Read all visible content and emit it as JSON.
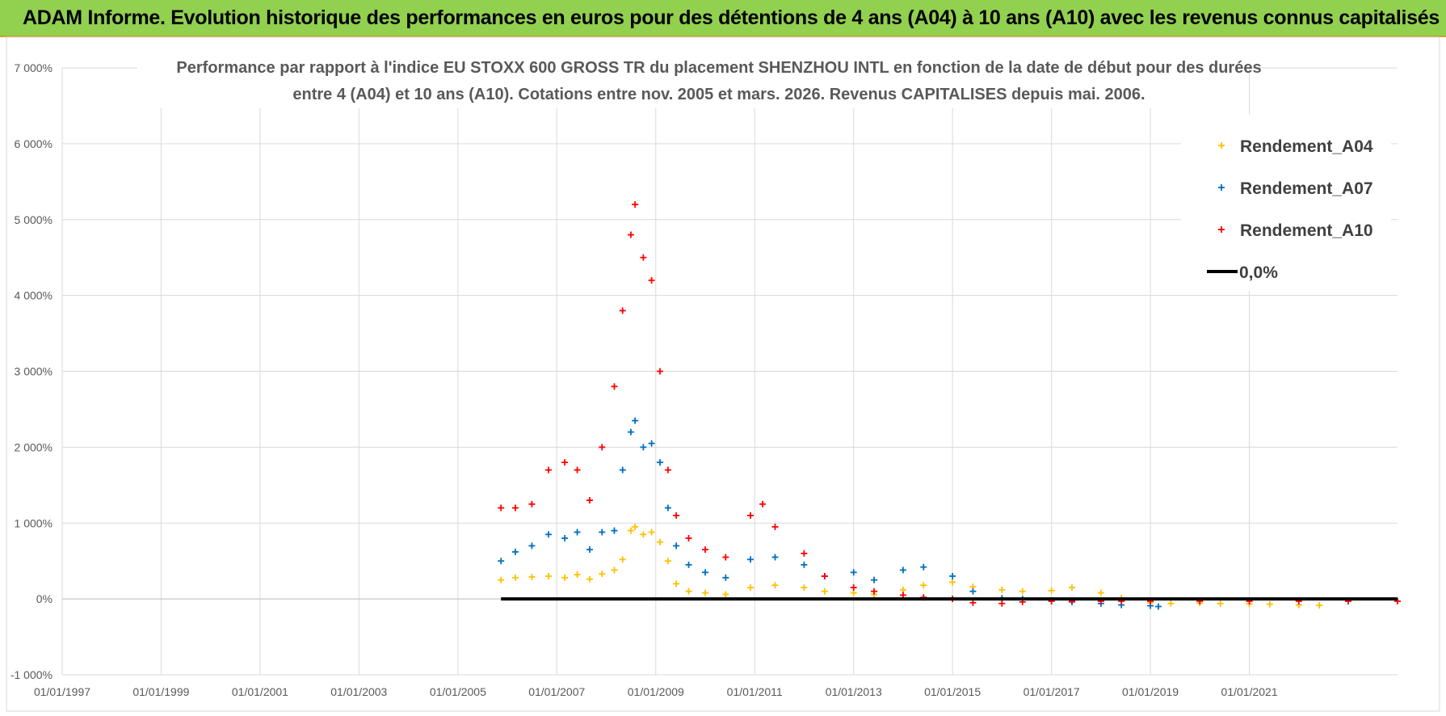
{
  "banner": {
    "title": "ADAM Informe. Evolution historique des performances en euros pour des détentions de 4 ans (A04) à 10 ans (A10) avec les revenus connus capitalisés"
  },
  "chart_data": {
    "type": "scatter",
    "title_line1": "Performance par rapport à l'indice EU STOXX 600 GROSS TR  du placement SHENZHOU INTL en fonction de la date de début pour des durées",
    "title_line2": "entre 4 (A04) et 10 ans (A10). Cotations entre nov. 2005 et mars. 2026. Revenus CAPITALISES depuis mai. 2006.",
    "xlabel": "",
    "ylabel": "",
    "x_range": [
      "1997-01-01",
      "2023-12-31"
    ],
    "x_tick_labels": [
      "01/01/1997",
      "01/01/1999",
      "01/01/2001",
      "01/01/2003",
      "01/01/2005",
      "01/01/2007",
      "01/01/2009",
      "01/01/2011",
      "01/01/2013",
      "01/01/2015",
      "01/01/2017",
      "01/01/2019",
      "01/01/2021"
    ],
    "y_range": [
      -1000,
      7000
    ],
    "y_ticks": [
      -1000,
      0,
      1000,
      2000,
      3000,
      4000,
      5000,
      6000,
      7000
    ],
    "y_tick_labels": [
      "-1 000%",
      "0%",
      "1 000%",
      "2 000%",
      "3 000%",
      "4 000%",
      "5 000%",
      "6 000%",
      "7 000%"
    ],
    "grid": true,
    "legend_position": "top-right",
    "series": [
      {
        "name": "Rendement_A04",
        "color": "#ffc000",
        "marker": "plus",
        "points": [
          [
            "2005-11-15",
            250
          ],
          [
            "2006-03-01",
            280
          ],
          [
            "2006-07-01",
            290
          ],
          [
            "2006-11-01",
            300
          ],
          [
            "2007-03-01",
            280
          ],
          [
            "2007-06-01",
            320
          ],
          [
            "2007-09-01",
            260
          ],
          [
            "2007-12-01",
            330
          ],
          [
            "2008-03-01",
            380
          ],
          [
            "2008-05-01",
            520
          ],
          [
            "2008-07-01",
            900
          ],
          [
            "2008-08-01",
            950
          ],
          [
            "2008-10-01",
            850
          ],
          [
            "2008-12-01",
            880
          ],
          [
            "2009-02-01",
            750
          ],
          [
            "2009-04-01",
            500
          ],
          [
            "2009-06-01",
            200
          ],
          [
            "2009-09-01",
            100
          ],
          [
            "2010-01-01",
            80
          ],
          [
            "2010-06-01",
            60
          ],
          [
            "2010-12-01",
            150
          ],
          [
            "2011-06-01",
            180
          ],
          [
            "2012-01-01",
            150
          ],
          [
            "2012-06-01",
            100
          ],
          [
            "2013-01-01",
            80
          ],
          [
            "2013-06-01",
            60
          ],
          [
            "2014-01-01",
            120
          ],
          [
            "2014-06-01",
            180
          ],
          [
            "2015-01-01",
            220
          ],
          [
            "2015-06-01",
            160
          ],
          [
            "2016-01-01",
            120
          ],
          [
            "2016-06-01",
            100
          ],
          [
            "2017-01-01",
            110
          ],
          [
            "2017-06-01",
            150
          ],
          [
            "2018-01-01",
            80
          ],
          [
            "2018-06-01",
            10
          ],
          [
            "2019-01-01",
            -50
          ],
          [
            "2019-06-01",
            -60
          ],
          [
            "2020-01-01",
            -55
          ],
          [
            "2020-06-01",
            -60
          ],
          [
            "2021-01-01",
            -65
          ],
          [
            "2021-06-01",
            -70
          ],
          [
            "2022-01-01",
            -80
          ],
          [
            "2022-06-01",
            -85
          ]
        ]
      },
      {
        "name": "Rendement_A07",
        "color": "#0070c0",
        "marker": "plus",
        "points": [
          [
            "2005-11-15",
            500
          ],
          [
            "2006-03-01",
            620
          ],
          [
            "2006-07-01",
            700
          ],
          [
            "2006-11-01",
            850
          ],
          [
            "2007-03-01",
            800
          ],
          [
            "2007-06-01",
            880
          ],
          [
            "2007-09-01",
            650
          ],
          [
            "2007-12-01",
            880
          ],
          [
            "2008-03-01",
            900
          ],
          [
            "2008-05-01",
            1700
          ],
          [
            "2008-07-01",
            2200
          ],
          [
            "2008-08-01",
            2350
          ],
          [
            "2008-10-01",
            2000
          ],
          [
            "2008-12-01",
            2050
          ],
          [
            "2009-02-01",
            1800
          ],
          [
            "2009-04-01",
            1200
          ],
          [
            "2009-06-01",
            700
          ],
          [
            "2009-09-01",
            450
          ],
          [
            "2010-01-01",
            350
          ],
          [
            "2010-06-01",
            280
          ],
          [
            "2010-12-01",
            520
          ],
          [
            "2011-06-01",
            550
          ],
          [
            "2012-01-01",
            450
          ],
          [
            "2012-06-01",
            300
          ],
          [
            "2013-01-01",
            350
          ],
          [
            "2013-06-01",
            250
          ],
          [
            "2014-01-01",
            380
          ],
          [
            "2014-06-01",
            420
          ],
          [
            "2015-01-01",
            300
          ],
          [
            "2015-06-01",
            100
          ],
          [
            "2016-01-01",
            10
          ],
          [
            "2016-06-01",
            0
          ],
          [
            "2017-01-01",
            -20
          ],
          [
            "2017-06-01",
            -40
          ],
          [
            "2018-01-01",
            -60
          ],
          [
            "2018-06-01",
            -80
          ],
          [
            "2019-01-01",
            -90
          ],
          [
            "2019-03-01",
            -100
          ]
        ]
      },
      {
        "name": "Rendement_A10",
        "color": "#ff0000",
        "marker": "plus",
        "points": [
          [
            "2005-11-15",
            1200
          ],
          [
            "2006-03-01",
            1200
          ],
          [
            "2006-07-01",
            1250
          ],
          [
            "2006-11-01",
            1700
          ],
          [
            "2007-03-01",
            1800
          ],
          [
            "2007-06-01",
            1700
          ],
          [
            "2007-09-01",
            1300
          ],
          [
            "2007-12-01",
            2000
          ],
          [
            "2008-03-01",
            2800
          ],
          [
            "2008-05-01",
            3800
          ],
          [
            "2008-07-01",
            4800
          ],
          [
            "2008-08-01",
            5200
          ],
          [
            "2008-10-01",
            4500
          ],
          [
            "2008-12-01",
            4200
          ],
          [
            "2009-02-01",
            3000
          ],
          [
            "2009-04-01",
            1700
          ],
          [
            "2009-06-01",
            1100
          ],
          [
            "2009-09-01",
            800
          ],
          [
            "2010-01-01",
            650
          ],
          [
            "2010-06-01",
            550
          ],
          [
            "2010-12-01",
            1100
          ],
          [
            "2011-03-01",
            1250
          ],
          [
            "2011-06-01",
            950
          ],
          [
            "2012-01-01",
            600
          ],
          [
            "2012-06-01",
            300
          ],
          [
            "2013-01-01",
            150
          ],
          [
            "2013-06-01",
            100
          ],
          [
            "2014-01-01",
            50
          ],
          [
            "2014-06-01",
            20
          ],
          [
            "2015-01-01",
            0
          ],
          [
            "2015-06-01",
            -50
          ],
          [
            "2016-01-01",
            -60
          ],
          [
            "2016-06-01",
            -40
          ],
          [
            "2017-01-01",
            -30
          ],
          [
            "2017-06-01",
            -30
          ],
          [
            "2018-01-01",
            -30
          ],
          [
            "2018-06-01",
            -30
          ],
          [
            "2019-01-01",
            -30
          ],
          [
            "2020-01-01",
            -30
          ],
          [
            "2021-01-01",
            -30
          ],
          [
            "2022-01-01",
            -30
          ],
          [
            "2023-01-01",
            -30
          ],
          [
            "2023-12-31",
            -30
          ]
        ]
      },
      {
        "name": "0,0%",
        "color": "#000000",
        "marker": "line",
        "points": [
          [
            "2005-11-15",
            0
          ],
          [
            "2023-12-31",
            0
          ]
        ]
      }
    ]
  }
}
